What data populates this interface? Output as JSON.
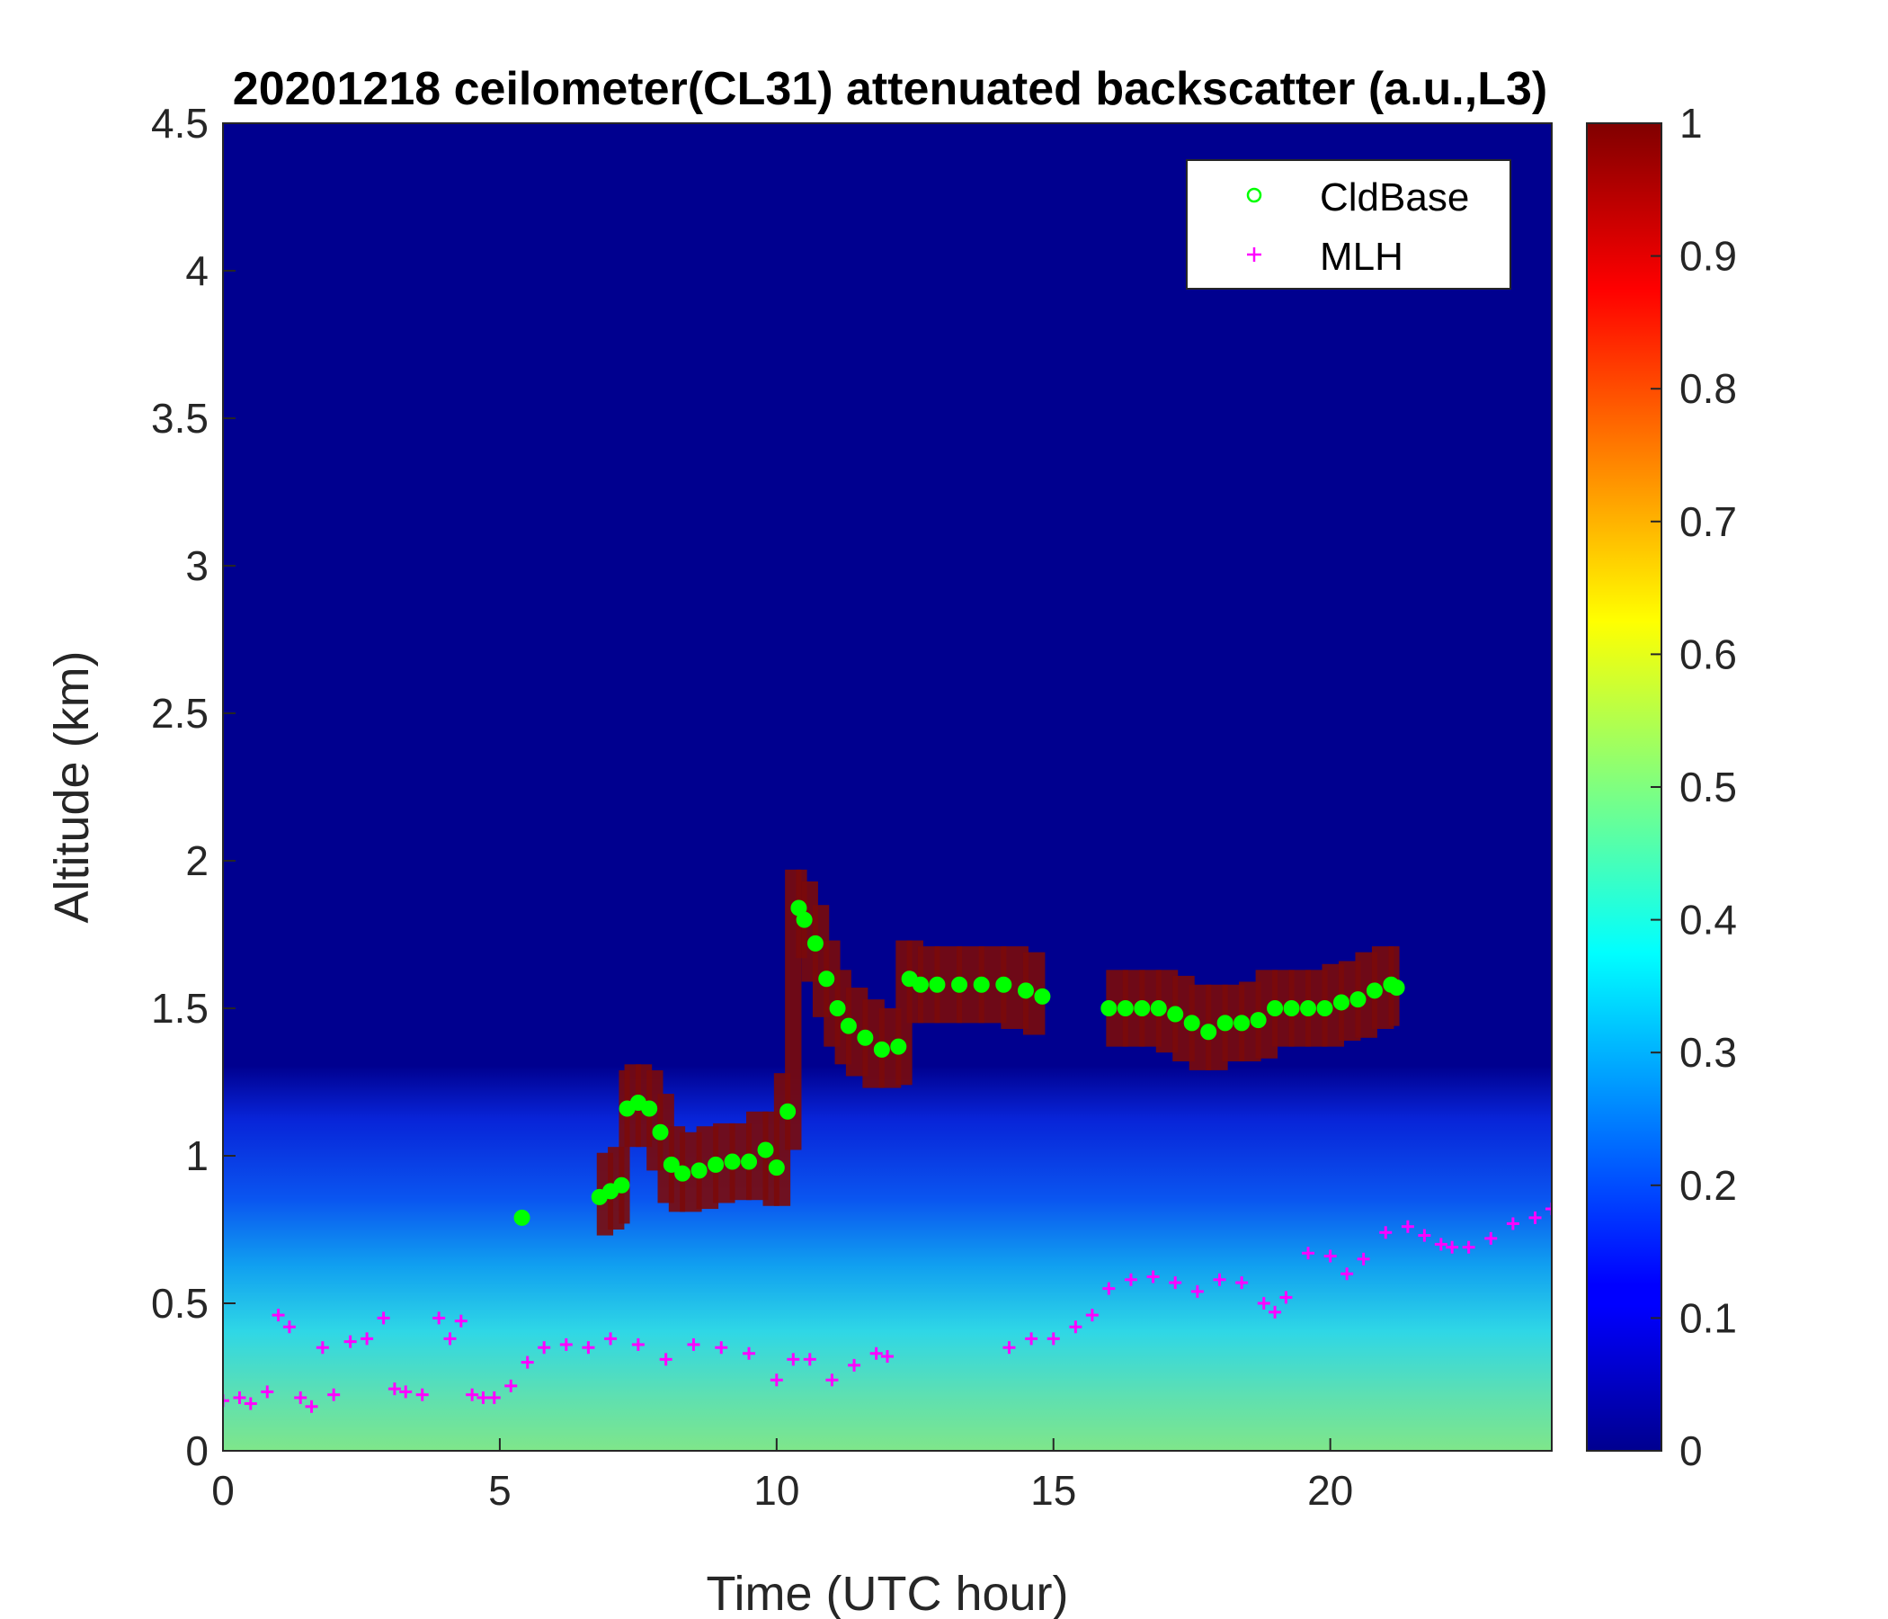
{
  "chart_data": {
    "type": "heatmap",
    "title": "20201218 ceilometer(CL31) attenuated backscatter (a.u.,L3)",
    "xlabel": "Time (UTC hour)",
    "ylabel": "Altitude (km)",
    "xlim": [
      0,
      24
    ],
    "ylim": [
      0,
      4.5
    ],
    "x_ticks": [
      "0",
      "5",
      "10",
      "15",
      "20"
    ],
    "y_ticks": [
      "0",
      "0.5",
      "1",
      "1.5",
      "2",
      "2.5",
      "3",
      "3.5",
      "4",
      "4.5"
    ],
    "colorbar": {
      "colormap": "jet",
      "range": [
        0,
        1
      ],
      "ticks": [
        "0",
        "0.1",
        "0.2",
        "0.3",
        "0.4",
        "0.5",
        "0.6",
        "0.7",
        "0.8",
        "0.9",
        "1"
      ]
    },
    "legend": {
      "placement": "top-right",
      "entries": [
        {
          "label": "CldBase",
          "marker": "o",
          "color": "#00ff00"
        },
        {
          "label": "MLH",
          "marker": "+",
          "color": "#ff00ff"
        }
      ]
    },
    "series": [
      {
        "name": "CldBase",
        "x": [
          5.4,
          6.8,
          7.0,
          7.2,
          7.3,
          7.5,
          7.7,
          7.9,
          8.1,
          8.3,
          8.6,
          8.9,
          9.2,
          9.5,
          9.8,
          10.0,
          10.2,
          10.4,
          10.5,
          10.7,
          10.9,
          11.1,
          11.3,
          11.6,
          11.9,
          12.2,
          12.4,
          12.6,
          12.9,
          13.3,
          13.7,
          14.1,
          14.5,
          14.8,
          16.0,
          16.3,
          16.6,
          16.9,
          17.2,
          17.5,
          17.8,
          18.1,
          18.4,
          18.7,
          19.0,
          19.3,
          19.6,
          19.9,
          20.2,
          20.5,
          20.8,
          21.1,
          21.2
        ],
        "y": [
          0.79,
          0.86,
          0.88,
          0.9,
          1.16,
          1.18,
          1.16,
          1.08,
          0.97,
          0.94,
          0.95,
          0.97,
          0.98,
          0.98,
          1.02,
          0.96,
          1.15,
          1.84,
          1.8,
          1.72,
          1.6,
          1.5,
          1.44,
          1.4,
          1.36,
          1.37,
          1.6,
          1.58,
          1.58,
          1.58,
          1.58,
          1.58,
          1.56,
          1.54,
          1.5,
          1.5,
          1.5,
          1.5,
          1.48,
          1.45,
          1.42,
          1.45,
          1.45,
          1.46,
          1.5,
          1.5,
          1.5,
          1.5,
          1.52,
          1.53,
          1.56,
          1.58,
          1.57
        ]
      },
      {
        "name": "MLH",
        "x": [
          0.0,
          0.3,
          0.5,
          0.8,
          1.0,
          1.2,
          1.4,
          1.6,
          1.8,
          2.0,
          2.3,
          2.6,
          2.9,
          3.1,
          3.3,
          3.6,
          3.9,
          4.1,
          4.3,
          4.5,
          4.7,
          4.9,
          5.2,
          5.5,
          5.8,
          6.2,
          6.6,
          7.0,
          7.5,
          8.0,
          8.5,
          9.0,
          9.5,
          10.0,
          10.3,
          10.6,
          11.0,
          11.4,
          11.8,
          12.0,
          14.2,
          14.6,
          15.0,
          15.4,
          15.7,
          16.0,
          16.4,
          16.8,
          17.2,
          17.6,
          18.0,
          18.4,
          18.8,
          19.0,
          19.2,
          19.6,
          20.0,
          20.3,
          20.6,
          21.0,
          21.4,
          21.7,
          22.0,
          22.2,
          22.5,
          22.9,
          23.3,
          23.7,
          24.0
        ],
        "y": [
          0.17,
          0.18,
          0.16,
          0.2,
          0.46,
          0.42,
          0.18,
          0.15,
          0.35,
          0.19,
          0.37,
          0.38,
          0.45,
          0.21,
          0.2,
          0.19,
          0.45,
          0.38,
          0.44,
          0.19,
          0.18,
          0.18,
          0.22,
          0.3,
          0.35,
          0.36,
          0.35,
          0.38,
          0.36,
          0.31,
          0.36,
          0.35,
          0.33,
          0.24,
          0.31,
          0.31,
          0.24,
          0.29,
          0.33,
          0.32,
          0.35,
          0.38,
          0.38,
          0.42,
          0.46,
          0.55,
          0.58,
          0.59,
          0.57,
          0.54,
          0.58,
          0.57,
          0.5,
          0.47,
          0.52,
          0.67,
          0.66,
          0.6,
          0.65,
          0.74,
          0.76,
          0.73,
          0.7,
          0.69,
          0.69,
          0.72,
          0.77,
          0.79,
          0.82
        ]
      }
    ]
  }
}
